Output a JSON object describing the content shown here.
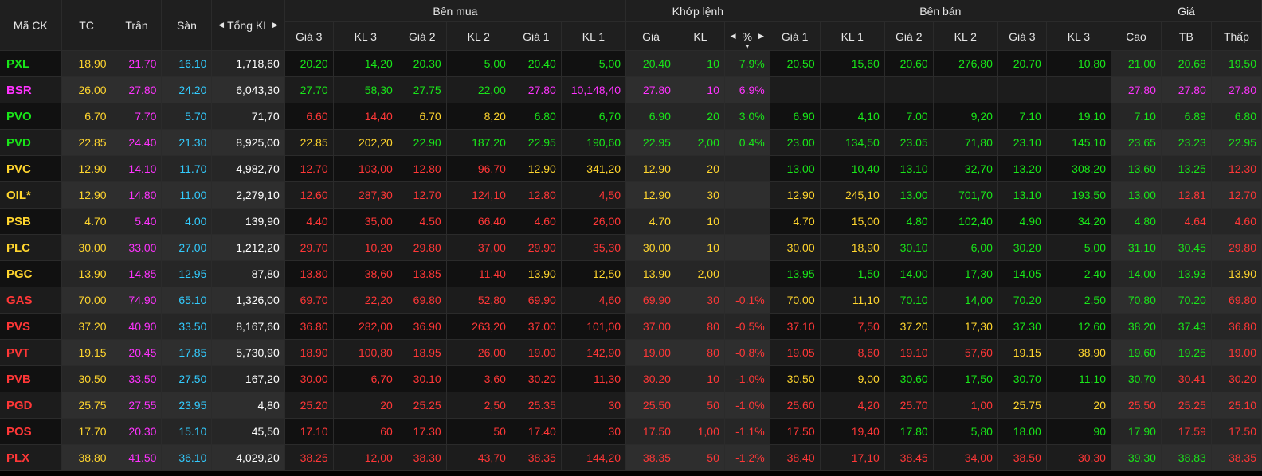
{
  "colors": {
    "up": "#19e619",
    "down": "#ff3737",
    "ref": "#ffd52e",
    "ceil": "#ff33ff",
    "floor": "#33ccff",
    "neutral": "#ffffff"
  },
  "header": {
    "symbol": "Mã CK",
    "ref": "TC",
    "ceil": "Trần",
    "floor": "Sàn",
    "total": "Tổng KL",
    "buy_group": "Bên mua",
    "match_group": "Khớp lệnh",
    "sell_group": "Bên bán",
    "price_group": "Giá",
    "bid_cols": [
      "Giá 3",
      "KL 3",
      "Giá 2",
      "KL 2",
      "Giá 1",
      "KL 1"
    ],
    "match_cols": [
      "Giá",
      "KL",
      "%"
    ],
    "ask_cols": [
      "Giá 1",
      "KL 1",
      "Giá 2",
      "KL 2",
      "Giá 3",
      "KL 3"
    ],
    "price_cols": [
      "Cao",
      "TB",
      "Thấp"
    ]
  },
  "rows": [
    {
      "sym": "PXL",
      "tc": "18.90",
      "ceil": "21.70",
      "floor": "16.10",
      "total": "1,718,60",
      "cells": [
        "20.20",
        "14,20",
        "20.30",
        "5,00",
        "20.40",
        "5,00",
        "20.40",
        "10",
        "7.9%",
        "20.50",
        "15,60",
        "20.60",
        "276,80",
        "20.70",
        "10,80",
        "21.00",
        "20.68",
        "19.50"
      ],
      "colors": [
        "up",
        "up",
        "up",
        "up",
        "up",
        "up",
        "up",
        "up",
        "up",
        "up",
        "up",
        "up",
        "up",
        "up",
        "up",
        "up",
        "up",
        "up"
      ],
      "symcolor": "up"
    },
    {
      "sym": "BSR",
      "tc": "26.00",
      "ceil": "27.80",
      "floor": "24.20",
      "total": "6,043,30",
      "cells": [
        "27.70",
        "58,30",
        "27.75",
        "22,00",
        "27.80",
        "10,148,40",
        "27.80",
        "10",
        "6.9%",
        "",
        "",
        "",
        "",
        "",
        "",
        "27.80",
        "27.80",
        "27.80"
      ],
      "colors": [
        "up",
        "up",
        "up",
        "up",
        "ceil",
        "ceil",
        "ceil",
        "ceil",
        "ceil",
        "up",
        "up",
        "up",
        "up",
        "up",
        "up",
        "ceil",
        "ceil",
        "ceil"
      ],
      "symcolor": "ceil"
    },
    {
      "sym": "PVO",
      "tc": "6.70",
      "ceil": "7.70",
      "floor": "5.70",
      "total": "71,70",
      "cells": [
        "6.60",
        "14,40",
        "6.70",
        "8,20",
        "6.80",
        "6,70",
        "6.90",
        "20",
        "3.0%",
        "6.90",
        "4,10",
        "7.00",
        "9,20",
        "7.10",
        "19,10",
        "7.10",
        "6.89",
        "6.80"
      ],
      "colors": [
        "down",
        "down",
        "ref",
        "ref",
        "up",
        "up",
        "up",
        "up",
        "up",
        "up",
        "up",
        "up",
        "up",
        "up",
        "up",
        "up",
        "up",
        "up"
      ],
      "symcolor": "up"
    },
    {
      "sym": "PVD",
      "tc": "22.85",
      "ceil": "24.40",
      "floor": "21.30",
      "total": "8,925,00",
      "cells": [
        "22.85",
        "202,20",
        "22.90",
        "187,20",
        "22.95",
        "190,60",
        "22.95",
        "2,00",
        "0.4%",
        "23.00",
        "134,50",
        "23.05",
        "71,80",
        "23.10",
        "145,10",
        "23.65",
        "23.23",
        "22.95"
      ],
      "colors": [
        "ref",
        "ref",
        "up",
        "up",
        "up",
        "up",
        "up",
        "up",
        "up",
        "up",
        "up",
        "up",
        "up",
        "up",
        "up",
        "up",
        "up",
        "up"
      ],
      "symcolor": "up"
    },
    {
      "sym": "PVC",
      "tc": "12.90",
      "ceil": "14.10",
      "floor": "11.70",
      "total": "4,982,70",
      "cells": [
        "12.70",
        "103,00",
        "12.80",
        "96,70",
        "12.90",
        "341,20",
        "12.90",
        "20",
        "",
        "13.00",
        "10,40",
        "13.10",
        "32,70",
        "13.20",
        "308,20",
        "13.60",
        "13.25",
        "12.30"
      ],
      "colors": [
        "down",
        "down",
        "down",
        "down",
        "ref",
        "ref",
        "ref",
        "ref",
        "ref",
        "up",
        "up",
        "up",
        "up",
        "up",
        "up",
        "up",
        "up",
        "down"
      ],
      "symcolor": "ref"
    },
    {
      "sym": "OIL*",
      "tc": "12.90",
      "ceil": "14.80",
      "floor": "11.00",
      "total": "2,279,10",
      "cells": [
        "12.60",
        "287,30",
        "12.70",
        "124,10",
        "12.80",
        "4,50",
        "12.90",
        "30",
        "",
        "12.90",
        "245,10",
        "13.00",
        "701,70",
        "13.10",
        "193,50",
        "13.00",
        "12.81",
        "12.70"
      ],
      "colors": [
        "down",
        "down",
        "down",
        "down",
        "down",
        "down",
        "ref",
        "ref",
        "ref",
        "ref",
        "ref",
        "up",
        "up",
        "up",
        "up",
        "up",
        "down",
        "down"
      ],
      "symcolor": "ref"
    },
    {
      "sym": "PSB",
      "tc": "4.70",
      "ceil": "5.40",
      "floor": "4.00",
      "total": "139,90",
      "cells": [
        "4.40",
        "35,00",
        "4.50",
        "66,40",
        "4.60",
        "26,00",
        "4.70",
        "10",
        "",
        "4.70",
        "15,00",
        "4.80",
        "102,40",
        "4.90",
        "34,20",
        "4.80",
        "4.64",
        "4.60"
      ],
      "colors": [
        "down",
        "down",
        "down",
        "down",
        "down",
        "down",
        "ref",
        "ref",
        "ref",
        "ref",
        "ref",
        "up",
        "up",
        "up",
        "up",
        "up",
        "down",
        "down"
      ],
      "symcolor": "ref"
    },
    {
      "sym": "PLC",
      "tc": "30.00",
      "ceil": "33.00",
      "floor": "27.00",
      "total": "1,212,20",
      "cells": [
        "29.70",
        "10,20",
        "29.80",
        "37,00",
        "29.90",
        "35,30",
        "30.00",
        "10",
        "",
        "30.00",
        "18,90",
        "30.10",
        "6,00",
        "30.20",
        "5,00",
        "31.10",
        "30.45",
        "29.80"
      ],
      "colors": [
        "down",
        "down",
        "down",
        "down",
        "down",
        "down",
        "ref",
        "ref",
        "ref",
        "ref",
        "ref",
        "up",
        "up",
        "up",
        "up",
        "up",
        "up",
        "down"
      ],
      "symcolor": "ref"
    },
    {
      "sym": "PGC",
      "tc": "13.90",
      "ceil": "14.85",
      "floor": "12.95",
      "total": "87,80",
      "cells": [
        "13.80",
        "38,60",
        "13.85",
        "11,40",
        "13.90",
        "12,50",
        "13.90",
        "2,00",
        "",
        "13.95",
        "1,50",
        "14.00",
        "17,30",
        "14.05",
        "2,40",
        "14.00",
        "13.93",
        "13.90"
      ],
      "colors": [
        "down",
        "down",
        "down",
        "down",
        "ref",
        "ref",
        "ref",
        "ref",
        "ref",
        "up",
        "up",
        "up",
        "up",
        "up",
        "up",
        "up",
        "up",
        "ref"
      ],
      "symcolor": "ref"
    },
    {
      "sym": "GAS",
      "tc": "70.00",
      "ceil": "74.90",
      "floor": "65.10",
      "total": "1,326,00",
      "cells": [
        "69.70",
        "22,20",
        "69.80",
        "52,80",
        "69.90",
        "4,60",
        "69.90",
        "30",
        "-0.1%",
        "70.00",
        "11,10",
        "70.10",
        "14,00",
        "70.20",
        "2,50",
        "70.80",
        "70.20",
        "69.80"
      ],
      "colors": [
        "down",
        "down",
        "down",
        "down",
        "down",
        "down",
        "down",
        "down",
        "down",
        "ref",
        "ref",
        "up",
        "up",
        "up",
        "up",
        "up",
        "up",
        "down"
      ],
      "symcolor": "down"
    },
    {
      "sym": "PVS",
      "tc": "37.20",
      "ceil": "40.90",
      "floor": "33.50",
      "total": "8,167,60",
      "cells": [
        "36.80",
        "282,00",
        "36.90",
        "263,20",
        "37.00",
        "101,00",
        "37.00",
        "80",
        "-0.5%",
        "37.10",
        "7,50",
        "37.20",
        "17,30",
        "37.30",
        "12,60",
        "38.20",
        "37.43",
        "36.80"
      ],
      "colors": [
        "down",
        "down",
        "down",
        "down",
        "down",
        "down",
        "down",
        "down",
        "down",
        "down",
        "down",
        "ref",
        "ref",
        "up",
        "up",
        "up",
        "up",
        "down"
      ],
      "symcolor": "down"
    },
    {
      "sym": "PVT",
      "tc": "19.15",
      "ceil": "20.45",
      "floor": "17.85",
      "total": "5,730,90",
      "cells": [
        "18.90",
        "100,80",
        "18.95",
        "26,00",
        "19.00",
        "142,90",
        "19.00",
        "80",
        "-0.8%",
        "19.05",
        "8,60",
        "19.10",
        "57,60",
        "19.15",
        "38,90",
        "19.60",
        "19.25",
        "19.00"
      ],
      "colors": [
        "down",
        "down",
        "down",
        "down",
        "down",
        "down",
        "down",
        "down",
        "down",
        "down",
        "down",
        "down",
        "down",
        "ref",
        "ref",
        "up",
        "up",
        "down"
      ],
      "symcolor": "down"
    },
    {
      "sym": "PVB",
      "tc": "30.50",
      "ceil": "33.50",
      "floor": "27.50",
      "total": "167,20",
      "cells": [
        "30.00",
        "6,70",
        "30.10",
        "3,60",
        "30.20",
        "11,30",
        "30.20",
        "10",
        "-1.0%",
        "30.50",
        "9,00",
        "30.60",
        "17,50",
        "30.70",
        "11,10",
        "30.70",
        "30.41",
        "30.20"
      ],
      "colors": [
        "down",
        "down",
        "down",
        "down",
        "down",
        "down",
        "down",
        "down",
        "down",
        "ref",
        "ref",
        "up",
        "up",
        "up",
        "up",
        "up",
        "down",
        "down"
      ],
      "symcolor": "down"
    },
    {
      "sym": "PGD",
      "tc": "25.75",
      "ceil": "27.55",
      "floor": "23.95",
      "total": "4,80",
      "cells": [
        "25.20",
        "20",
        "25.25",
        "2,50",
        "25.35",
        "30",
        "25.50",
        "50",
        "-1.0%",
        "25.60",
        "4,20",
        "25.70",
        "1,00",
        "25.75",
        "20",
        "25.50",
        "25.25",
        "25.10"
      ],
      "colors": [
        "down",
        "down",
        "down",
        "down",
        "down",
        "down",
        "down",
        "down",
        "down",
        "down",
        "down",
        "down",
        "down",
        "ref",
        "ref",
        "down",
        "down",
        "down"
      ],
      "symcolor": "down"
    },
    {
      "sym": "POS",
      "tc": "17.70",
      "ceil": "20.30",
      "floor": "15.10",
      "total": "45,50",
      "cells": [
        "17.10",
        "60",
        "17.30",
        "50",
        "17.40",
        "30",
        "17.50",
        "1,00",
        "-1.1%",
        "17.50",
        "19,40",
        "17.80",
        "5,80",
        "18.00",
        "90",
        "17.90",
        "17.59",
        "17.50"
      ],
      "colors": [
        "down",
        "down",
        "down",
        "down",
        "down",
        "down",
        "down",
        "down",
        "down",
        "down",
        "down",
        "up",
        "up",
        "up",
        "up",
        "up",
        "down",
        "down"
      ],
      "symcolor": "down"
    },
    {
      "sym": "PLX",
      "tc": "38.80",
      "ceil": "41.50",
      "floor": "36.10",
      "total": "4,029,20",
      "cells": [
        "38.25",
        "12,00",
        "38.30",
        "43,70",
        "38.35",
        "144,20",
        "38.35",
        "50",
        "-1.2%",
        "38.40",
        "17,10",
        "38.45",
        "34,00",
        "38.50",
        "30,30",
        "39.30",
        "38.83",
        "38.35"
      ],
      "colors": [
        "down",
        "down",
        "down",
        "down",
        "down",
        "down",
        "down",
        "down",
        "down",
        "down",
        "down",
        "down",
        "down",
        "down",
        "down",
        "up",
        "up",
        "down"
      ],
      "symcolor": "down"
    }
  ]
}
